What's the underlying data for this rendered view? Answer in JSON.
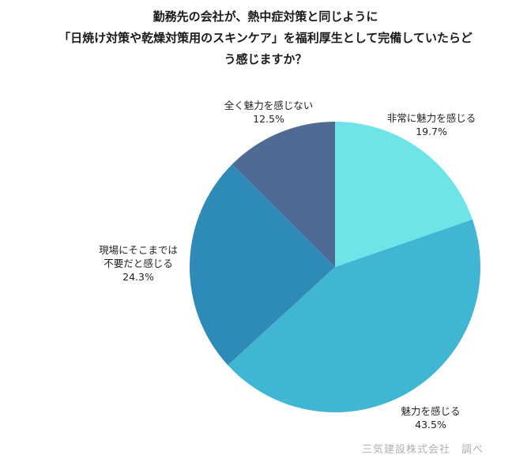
{
  "chart_data": {
    "type": "pie",
    "title": [
      "勤務先の会社が、熱中症対策と同じように",
      "「日焼け対策や乾燥対策用のスキンケア」を福利厚生として完備していたらど",
      "う感じますか？"
    ],
    "slices": [
      {
        "label": [
          "非常に魅力を感じる"
        ],
        "value": 19.7,
        "value_label": "19.7%",
        "color": "#6ee4e8"
      },
      {
        "label": [
          "魅力を感じる"
        ],
        "value": 43.5,
        "value_label": "43.5%",
        "color": "#41b6d3"
      },
      {
        "label": [
          "現場にそこまでは",
          "不要だと感じる"
        ],
        "value": 24.3,
        "value_label": "24.3%",
        "color": "#2e8ab6"
      },
      {
        "label": [
          "全く魅力を感じない"
        ],
        "value": 12.5,
        "value_label": "12.5%",
        "color": "#4f6b94"
      }
    ],
    "start": "12 o'clock",
    "direction": "clockwise",
    "legend": "none"
  },
  "source": "三気建設株式会社　調べ"
}
